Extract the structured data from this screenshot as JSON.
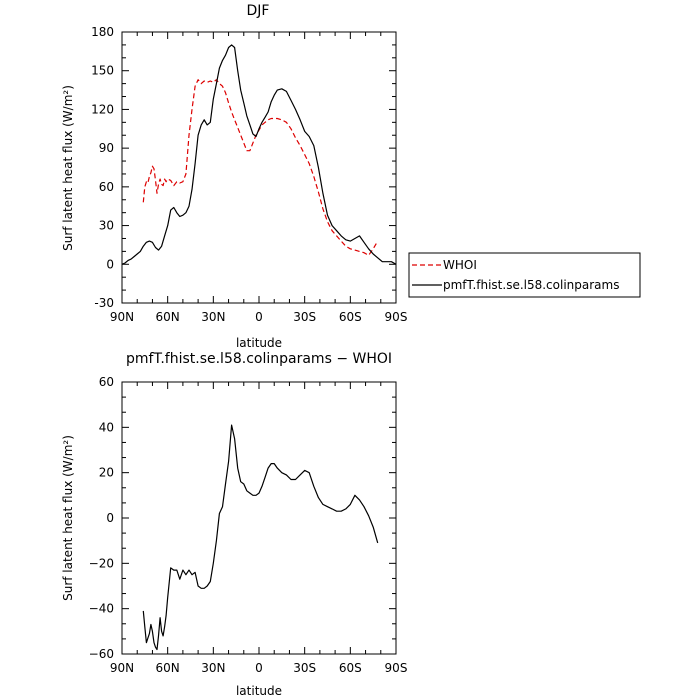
{
  "chart_data": [
    {
      "type": "line",
      "title": "DJF",
      "xlabel": "latitude",
      "ylabel": "Surf latent heat flux (W/m²)",
      "xlim": [
        90,
        -90
      ],
      "ylim": [
        -30,
        180
      ],
      "x_ticks": [
        90,
        60,
        30,
        0,
        -30,
        -60,
        -90
      ],
      "x_tick_labels": [
        "90N",
        "60N",
        "30N",
        "0",
        "30S",
        "60S",
        "90S"
      ],
      "y_ticks": [
        -30,
        0,
        30,
        60,
        90,
        120,
        150,
        180
      ],
      "y_tick_labels": [
        "-30",
        "0",
        "30",
        "60",
        "90",
        "120",
        "150",
        "180"
      ],
      "legend_position": "right, outside plot",
      "series": [
        {
          "name": "WHOI",
          "color": "#dd0000",
          "dash": "dashed",
          "x": [
            76,
            75,
            74,
            73,
            72,
            71,
            70,
            69,
            68,
            67,
            66,
            65,
            64,
            63,
            62,
            61,
            60,
            58,
            56,
            54,
            52,
            50,
            48,
            46,
            44,
            42,
            40,
            38,
            36,
            34,
            32,
            30,
            28,
            26,
            24,
            22,
            20,
            18,
            16,
            14,
            12,
            10,
            8,
            6,
            4,
            2,
            0,
            -2,
            -4,
            -6,
            -8,
            -10,
            -12,
            -15,
            -18,
            -21,
            -24,
            -27,
            -30,
            -33,
            -36,
            -39,
            -42,
            -45,
            -48,
            -51,
            -54,
            -57,
            -60,
            -63,
            -66,
            -69,
            -72,
            -75,
            -78
          ],
          "y": [
            48,
            60,
            64,
            63,
            68,
            71,
            76,
            74,
            65,
            55,
            62,
            66,
            62,
            61,
            66,
            64,
            66,
            65,
            61,
            64,
            63,
            64,
            70,
            100,
            120,
            138,
            143,
            140,
            142,
            141,
            142,
            141,
            143,
            140,
            138,
            133,
            125,
            118,
            112,
            106,
            100,
            94,
            88,
            88,
            94,
            100,
            104,
            108,
            110,
            112,
            113,
            113,
            113,
            112,
            110,
            105,
            98,
            92,
            85,
            78,
            68,
            56,
            43,
            33,
            26,
            22,
            18,
            14,
            12,
            11,
            10,
            9,
            7,
            12,
            18
          ]
        },
        {
          "name": "pmfT.fhist.se.l58.colinparams",
          "color": "#000000",
          "dash": "solid",
          "x": [
            90,
            88,
            86,
            84,
            82,
            80,
            78,
            76,
            74,
            72,
            70,
            68,
            66,
            64,
            62,
            60,
            58,
            56,
            54,
            52,
            50,
            48,
            46,
            44,
            42,
            40,
            38,
            36,
            34,
            32,
            30,
            28,
            26,
            24,
            22,
            20,
            18,
            16,
            14,
            12,
            10,
            8,
            6,
            4,
            2,
            0,
            -2,
            -4,
            -6,
            -8,
            -10,
            -12,
            -15,
            -18,
            -21,
            -24,
            -27,
            -30,
            -33,
            -36,
            -39,
            -42,
            -45,
            -48,
            -51,
            -54,
            -57,
            -60,
            -63,
            -66,
            -69,
            -72,
            -75,
            -78,
            -81,
            -84,
            -87,
            -90
          ],
          "y": [
            0,
            1,
            3,
            4,
            6,
            8,
            10,
            14,
            17,
            18,
            17,
            13,
            11,
            14,
            22,
            30,
            42,
            44,
            40,
            37,
            38,
            40,
            45,
            58,
            78,
            100,
            108,
            112,
            108,
            110,
            128,
            140,
            152,
            158,
            162,
            168,
            170,
            168,
            150,
            135,
            125,
            115,
            108,
            101,
            99,
            105,
            110,
            114,
            118,
            126,
            131,
            135,
            136,
            134,
            127,
            120,
            112,
            103,
            99,
            92,
            75,
            55,
            38,
            30,
            26,
            22,
            19,
            18,
            20,
            22,
            17,
            12,
            8,
            5,
            2,
            2,
            2,
            0
          ]
        }
      ]
    },
    {
      "type": "line",
      "title": "pmfT.fhist.se.l58.colinparams − WHOI",
      "xlabel": "latitude",
      "ylabel": "Surf latent heat flux (W/m²)",
      "xlim": [
        90,
        -90
      ],
      "ylim": [
        -60,
        60
      ],
      "x_ticks": [
        90,
        60,
        30,
        0,
        -30,
        -60,
        -90
      ],
      "x_tick_labels": [
        "90N",
        "60N",
        "30N",
        "0",
        "30S",
        "60S",
        "90S"
      ],
      "y_ticks": [
        -60,
        -40,
        -20,
        0,
        20,
        40,
        60
      ],
      "y_tick_labels": [
        "−60",
        "−40",
        "−20",
        "0",
        "20",
        "40",
        "60"
      ],
      "series": [
        {
          "color": "#000000",
          "dash": "solid",
          "x": [
            76,
            75,
            74,
            73,
            72,
            71,
            70,
            69,
            68,
            67,
            66,
            65,
            64,
            63,
            62,
            61,
            60,
            58,
            56,
            54,
            52,
            50,
            48,
            46,
            44,
            42,
            40,
            38,
            36,
            34,
            32,
            30,
            28,
            26,
            24,
            22,
            20,
            18,
            16,
            14,
            12,
            10,
            8,
            6,
            4,
            2,
            0,
            -2,
            -4,
            -6,
            -8,
            -10,
            -12,
            -15,
            -18,
            -21,
            -24,
            -27,
            -30,
            -33,
            -36,
            -39,
            -42,
            -45,
            -48,
            -51,
            -54,
            -57,
            -60,
            -63,
            -66,
            -69,
            -72,
            -75,
            -78
          ],
          "y": [
            -41,
            -48,
            -55,
            -53,
            -51,
            -47,
            -50,
            -55,
            -57,
            -58,
            -52,
            -44,
            -50,
            -52,
            -48,
            -43,
            -35,
            -22,
            -23,
            -23,
            -27,
            -23,
            -25,
            -23,
            -25,
            -24,
            -30,
            -31,
            -31,
            -30,
            -28,
            -20,
            -10,
            2,
            5,
            15,
            25,
            41,
            35,
            22,
            16,
            15,
            12,
            11,
            10,
            10,
            11,
            14,
            18,
            22,
            24,
            24,
            22,
            20,
            19,
            17,
            17,
            19,
            21,
            20,
            14,
            9,
            6,
            5,
            4,
            3,
            3,
            4,
            6,
            10,
            8,
            5,
            1,
            -4,
            -11
          ]
        }
      ]
    }
  ]
}
